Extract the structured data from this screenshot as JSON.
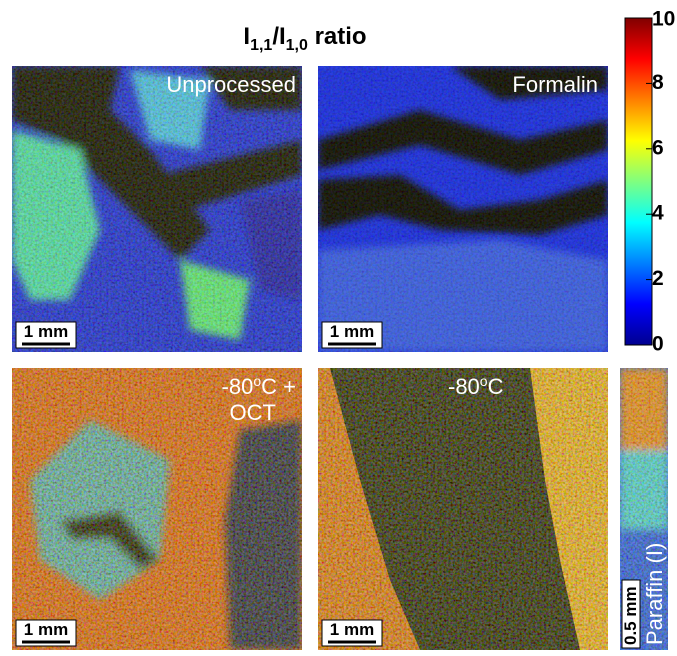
{
  "title": {
    "main1": "I",
    "sub1": "1,1",
    "main2": "/I",
    "sub2": "1,0",
    "main3": " ratio"
  },
  "panels": [
    {
      "label": "Unprocessed",
      "scale_bar": "1 mm"
    },
    {
      "label": "Formalin",
      "scale_bar": "1 mm"
    },
    {
      "label": [
        "-80",
        "o",
        "C +",
        "OCT"
      ],
      "scale_bar": "1 mm"
    },
    {
      "label": [
        "-80",
        "o",
        "C"
      ],
      "scale_bar": "1 mm"
    },
    {
      "label": "Paraffin (I)",
      "scale_bar": "0.5 mm"
    }
  ],
  "colorbar": {
    "lim": [
      0,
      10
    ],
    "ticks": [
      0,
      2,
      4,
      6,
      8,
      10
    ]
  }
}
